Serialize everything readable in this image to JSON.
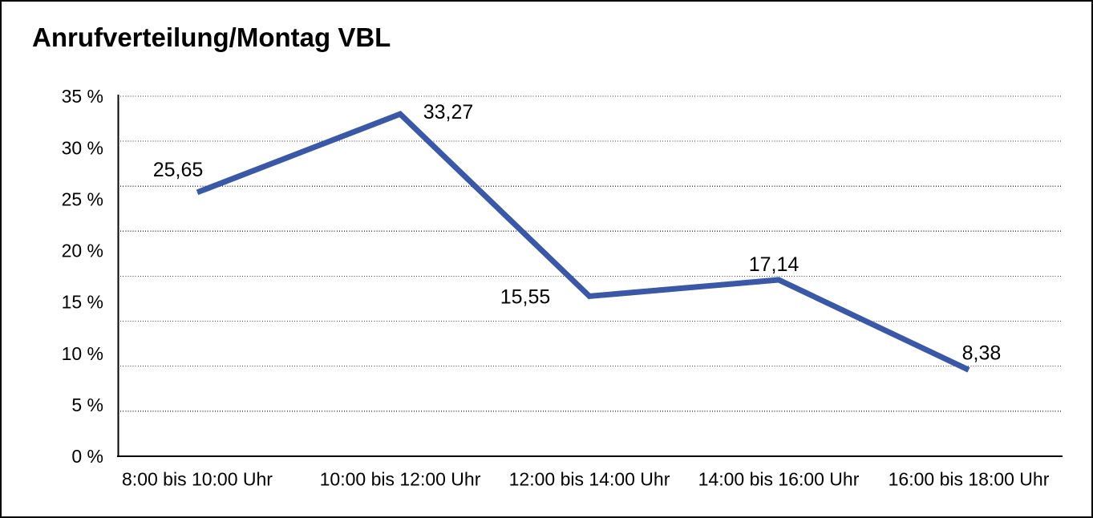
{
  "title": "Anrufverteilung/Montag VBL",
  "chart_data": {
    "type": "line",
    "title": "Anrufverteilung/Montag VBL",
    "categories": [
      "8:00 bis 10:00 Uhr",
      "10:00 bis 12:00 Uhr",
      "12:00 bis 14:00 Uhr",
      "14:00 bis 16:00 Uhr",
      "16:00 bis 18:00 Uhr"
    ],
    "values": [
      25.65,
      33.27,
      15.55,
      17.14,
      8.38
    ],
    "value_labels": [
      "25,65",
      "33,27",
      "15,55",
      "17,14",
      "8,38"
    ],
    "y_tick_labels": [
      "35 %",
      "30 %",
      "25 %",
      "20 %",
      "15 %",
      "10 %",
      "5 %",
      "0 %"
    ],
    "ylim": [
      0,
      35
    ],
    "xlabel": "",
    "ylabel": "",
    "grid": "dotted-horizontal",
    "legend": "none",
    "line_color": "#3A58A5",
    "axis_color": "#000000",
    "grid_color": "#3d3d3d",
    "text_color": "#000000",
    "background_color": "#ffffff",
    "border_color": "#000000"
  }
}
